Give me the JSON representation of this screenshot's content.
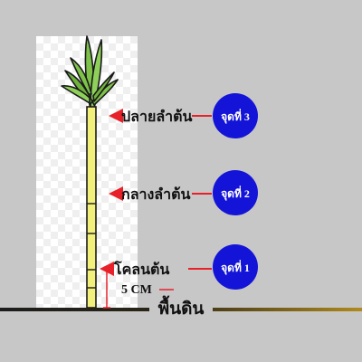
{
  "labels": {
    "top": "ปลายลำต้น",
    "middle": "กลางลำต้น",
    "base": "โคลนต้น"
  },
  "points": [
    {
      "text": "จุดที่ 3"
    },
    {
      "text": "จุดที่ 2"
    },
    {
      "text": "จุดที่ 1"
    }
  ],
  "measure": "5 CM",
  "ground": "พื้นดิน",
  "colors": {
    "background": "#c7c7c7",
    "arrow": "#e8202a",
    "circle": "#1414d8",
    "stalk": "#f2ef7a",
    "leaf": "#7ec24a",
    "ground_dark": "#1c1c1c",
    "ground_gold": "#b08a1e"
  }
}
